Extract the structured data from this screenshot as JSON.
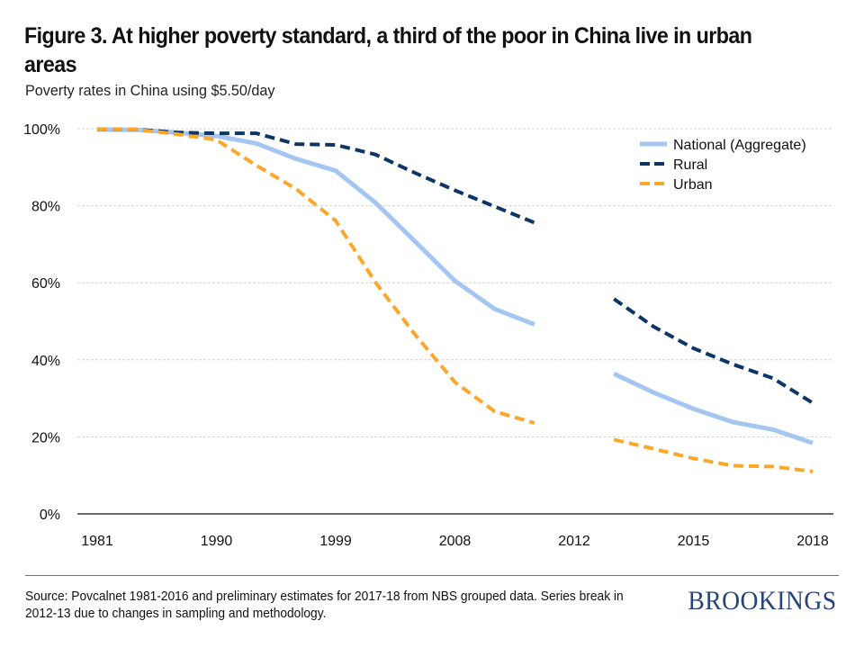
{
  "header": {
    "title": "Figure 3. At higher poverty standard, a third of the poor in China live in urban areas",
    "subtitle": "Poverty rates in China using $5.50/day"
  },
  "footer": {
    "source": "Source: Povcalnet 1981-2016 and preliminary estimates for 2017-18 from NBS grouped data. Series break in 2012-13 due to changes in sampling and methodology.",
    "logo": "BROOKINGS"
  },
  "chart_data": {
    "type": "line",
    "title": "Figure 3. At higher poverty standard, a third of the poor in China live in urban areas",
    "subtitle": "Poverty rates in China using $5.50/day",
    "xlabel": "",
    "ylabel": "",
    "x": [
      1981,
      1984,
      1987,
      1990,
      1993,
      1996,
      1999,
      2002,
      2005,
      2008,
      2010,
      2011,
      2012,
      2013,
      2014,
      2015,
      2016,
      2017,
      2018
    ],
    "x_tick_labels": [
      "1981",
      "1990",
      "1999",
      "2008",
      "2012",
      "2015",
      "2018"
    ],
    "y_tick_labels": [
      "0%",
      "20%",
      "40%",
      "60%",
      "80%",
      "100%"
    ],
    "y_ticks": [
      0,
      20,
      40,
      60,
      80,
      100
    ],
    "ylim": [
      0,
      100
    ],
    "grid": "horizontal",
    "legend_position": "top-right",
    "series_break": "2012",
    "series": [
      {
        "name": "National (Aggregate)",
        "style": "solid",
        "color": "#a4c6f0",
        "values": [
          99.8,
          99.7,
          99.0,
          98.1,
          96.2,
          92.2,
          89.1,
          80.8,
          70.7,
          60.5,
          53.2,
          49.2,
          null,
          36.4,
          31.5,
          27.3,
          23.8,
          21.9,
          18.4
        ]
      },
      {
        "name": "Rural",
        "style": "dashed",
        "color": "#0d3665",
        "values": [
          99.8,
          99.8,
          99.0,
          98.8,
          98.8,
          96.0,
          95.8,
          93.3,
          88.5,
          84.0,
          79.8,
          75.6,
          null,
          55.8,
          48.6,
          43.0,
          38.8,
          35.2,
          28.8
        ]
      },
      {
        "name": "Urban",
        "style": "dashed",
        "color": "#fba72a",
        "values": [
          99.8,
          99.8,
          98.6,
          97.1,
          90.5,
          84.4,
          76.1,
          60.1,
          46.5,
          34.2,
          26.6,
          23.6,
          null,
          19.3,
          16.9,
          14.4,
          12.5,
          12.3,
          11.0
        ]
      }
    ]
  }
}
